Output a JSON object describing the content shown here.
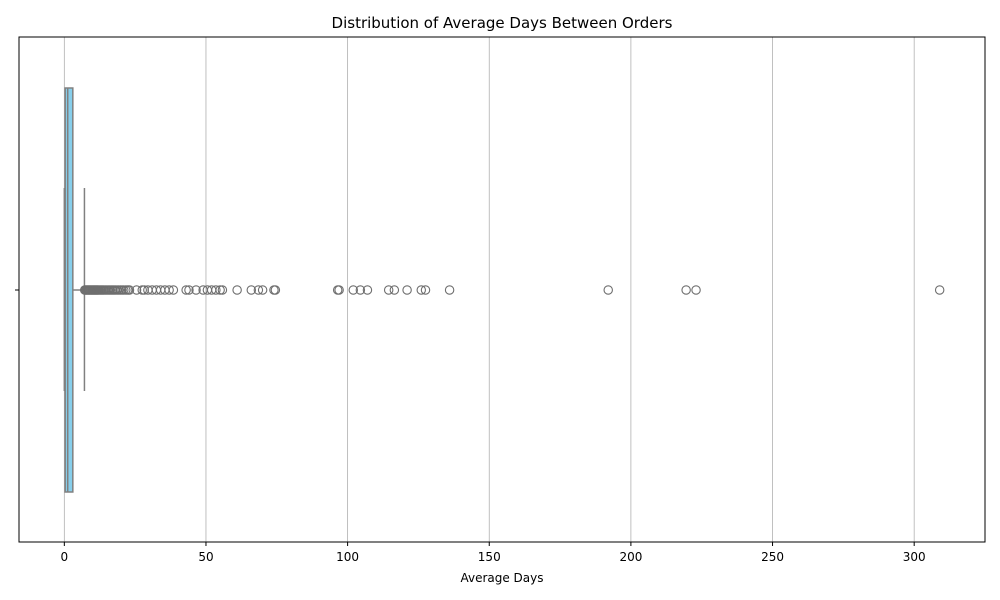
{
  "chart_data": {
    "type": "boxplot",
    "orientation": "horizontal",
    "title": "Distribution of Average Days Between Orders",
    "xlabel": "Average Days",
    "ylabel": "",
    "xlim": [
      -16,
      325
    ],
    "xticks": [
      0,
      50,
      100,
      150,
      200,
      250,
      300
    ],
    "grid": {
      "x": true,
      "y": false
    },
    "box": {
      "min": 0,
      "q1": 0.3,
      "median": 1.2,
      "q3": 3.0,
      "whisker_low": 0,
      "whisker_high": 7.1
    },
    "outliers": [
      7.2,
      7.5,
      7.8,
      8.1,
      8.4,
      8.7,
      9.0,
      9.3,
      9.6,
      9.9,
      10.2,
      10.5,
      10.8,
      11.1,
      11.4,
      11.7,
      12.0,
      12.4,
      12.8,
      13.2,
      13.6,
      14.0,
      14.5,
      15.0,
      15.5,
      16.0,
      16.5,
      17.0,
      17.5,
      18.0,
      18.6,
      19.2,
      19.8,
      20.4,
      21.0,
      21.7,
      22.4,
      23.0,
      25.5,
      27.5,
      28.2,
      29.5,
      31.0,
      32.5,
      34.0,
      35.5,
      37.0,
      38.5,
      43.0,
      44.0,
      46.5,
      49.0,
      50.5,
      52.0,
      53.5,
      55.0,
      55.8,
      61.0,
      66.0,
      68.5,
      70.0,
      74.0,
      74.5,
      96.5,
      97.0,
      102.0,
      104.5,
      107.0,
      114.5,
      116.5,
      121.0,
      126.0,
      127.5,
      136.0,
      192.0,
      219.5,
      223.0,
      309.0
    ],
    "colors": {
      "box_fill": "#87ceeb",
      "line": "#808080",
      "outlier_edge": "#6e6e6e",
      "grid": "#b0b0b0",
      "axis": "#000000"
    }
  }
}
